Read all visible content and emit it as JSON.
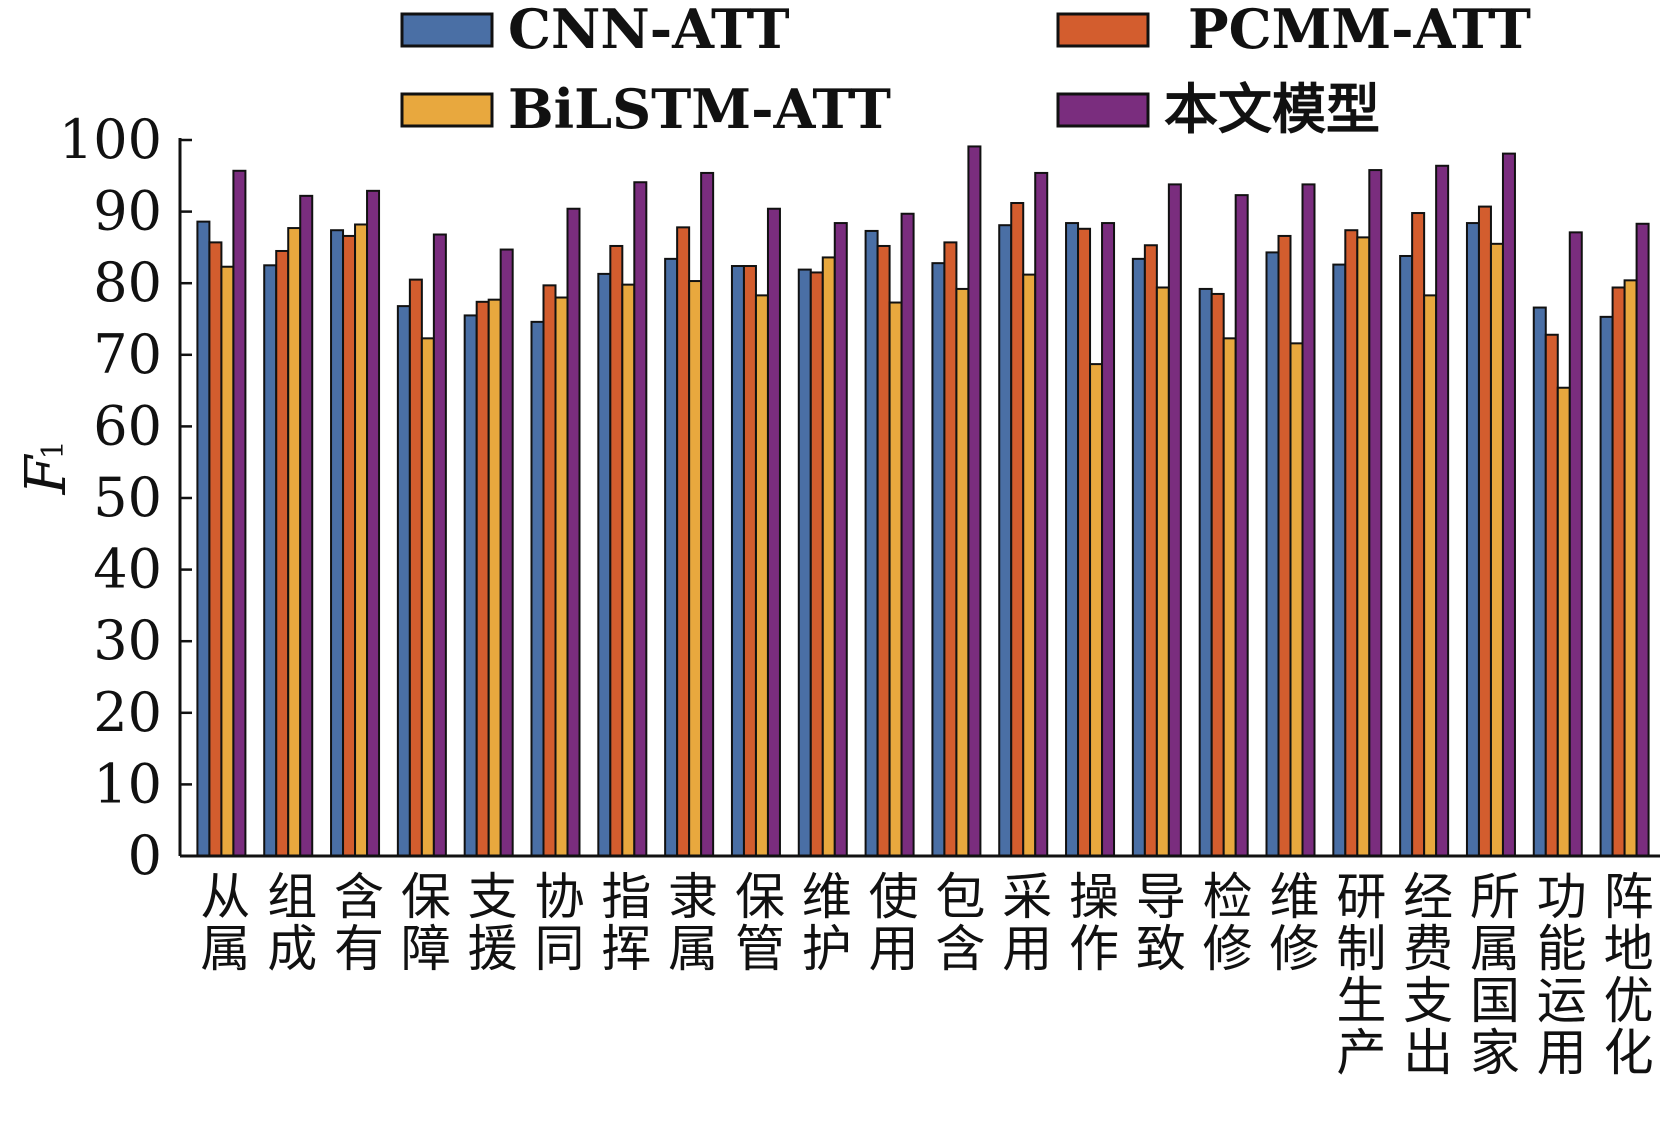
{
  "chart_data": {
    "type": "bar",
    "title": "",
    "xlabel": "",
    "ylabel": "F",
    "ylabel_subscript": "1",
    "ylim": [
      0,
      100
    ],
    "yticks": [
      0,
      10,
      20,
      30,
      40,
      50,
      60,
      70,
      80,
      90,
      100
    ],
    "grid": false,
    "legend_position": "top",
    "categories": [
      "从属",
      "组成",
      "含有",
      "保障",
      "支援",
      "协同",
      "指挥",
      "隶属",
      "保管",
      "维护",
      "使用",
      "包含",
      "采用",
      "操作",
      "导致",
      "检修",
      "维修",
      "研制生产",
      "经费支出",
      "所属国家",
      "功能运用",
      "阵地优化"
    ],
    "series": [
      {
        "name": "CNN-ATT",
        "color": "#4a6fa5",
        "values": [
          88.6,
          82.5,
          87.4,
          76.8,
          75.5,
          74.6,
          81.3,
          83.4,
          82.4,
          81.9,
          87.3,
          82.8,
          88.1,
          88.4,
          83.4,
          79.2,
          84.3,
          82.6,
          83.8,
          88.4,
          76.6,
          75.3
        ]
      },
      {
        "name": "PCMM-ATT",
        "color": "#d35d2e",
        "values": [
          85.7,
          84.5,
          86.6,
          80.5,
          77.4,
          79.7,
          85.2,
          87.8,
          82.4,
          81.5,
          85.2,
          85.7,
          91.2,
          87.6,
          85.3,
          78.5,
          86.6,
          87.4,
          89.8,
          90.7,
          72.8,
          79.4
        ]
      },
      {
        "name": "BiLSTM-ATT",
        "color": "#e8a83e",
        "values": [
          82.3,
          87.7,
          88.2,
          72.3,
          77.7,
          78.0,
          79.8,
          80.3,
          78.3,
          83.6,
          77.3,
          79.2,
          81.2,
          68.7,
          79.4,
          72.3,
          71.6,
          86.4,
          78.3,
          85.5,
          65.4,
          80.4
        ]
      },
      {
        "name": "本文模型",
        "color": "#7a2d7e",
        "values": [
          95.7,
          92.2,
          92.9,
          86.8,
          84.7,
          90.4,
          94.1,
          95.4,
          90.4,
          88.4,
          89.7,
          99.1,
          95.4,
          88.4,
          93.8,
          92.3,
          93.8,
          95.8,
          96.4,
          98.1,
          87.1,
          88.3
        ]
      }
    ]
  }
}
